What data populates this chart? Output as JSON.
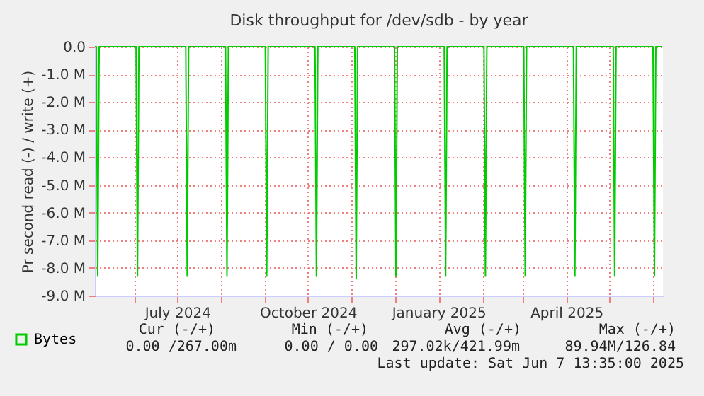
{
  "chart_data": {
    "type": "line",
    "title": "Disk throughput for /dev/sdb - by year",
    "ylabel": "Pr second read (-) / write (+)",
    "series": [
      {
        "name": "Bytes",
        "color": "#00cc00",
        "x": [
          "2024-05-04",
          "2024-05-05",
          "2024-05-06",
          "2024-05-07",
          "2024-06-02",
          "2024-06-03",
          "2024-06-04",
          "2024-07-07",
          "2024-07-08",
          "2024-07-09",
          "2024-08-04",
          "2024-08-05",
          "2024-08-06",
          "2024-09-01",
          "2024-09-02",
          "2024-09-03",
          "2024-10-06",
          "2024-10-07",
          "2024-10-08",
          "2024-11-03",
          "2024-11-04",
          "2024-11-05",
          "2024-12-01",
          "2024-12-02",
          "2024-12-03",
          "2025-01-05",
          "2025-01-06",
          "2025-01-07",
          "2025-02-02",
          "2025-02-03",
          "2025-02-04",
          "2025-03-02",
          "2025-03-03",
          "2025-03-04",
          "2025-04-06",
          "2025-04-07",
          "2025-04-08",
          "2025-05-04",
          "2025-05-05",
          "2025-05-06",
          "2025-06-01",
          "2025-06-02",
          "2025-06-03",
          "2025-06-07"
        ],
        "values": [
          0,
          0,
          -8300000,
          0,
          0,
          -8300000,
          0,
          0,
          -8300000,
          0,
          0,
          -8300000,
          0,
          0,
          -8300000,
          0,
          0,
          -8300000,
          0,
          0,
          -8400000,
          0,
          0,
          -8300000,
          0,
          0,
          -8300000,
          0,
          0,
          -8300000,
          0,
          0,
          -8300000,
          0,
          0,
          -8300000,
          0,
          0,
          -8300000,
          0,
          0,
          -8300000,
          0,
          0
        ]
      }
    ],
    "xlim": [
      "2024-05-04",
      "2025-06-08"
    ],
    "xticks": [
      {
        "value": "2024-06-01",
        "label": null
      },
      {
        "value": "2024-07-01",
        "label": "July 2024"
      },
      {
        "value": "2024-08-01",
        "label": null
      },
      {
        "value": "2024-09-01",
        "label": null
      },
      {
        "value": "2024-10-01",
        "label": "October 2024"
      },
      {
        "value": "2024-11-01",
        "label": null
      },
      {
        "value": "2024-12-01",
        "label": null
      },
      {
        "value": "2025-01-01",
        "label": "January 2025"
      },
      {
        "value": "2025-02-01",
        "label": null
      },
      {
        "value": "2025-03-01",
        "label": null
      },
      {
        "value": "2025-04-01",
        "label": "April 2025"
      },
      {
        "value": "2025-05-01",
        "label": null
      },
      {
        "value": "2025-06-01",
        "label": null
      }
    ],
    "ylim": [
      -9000000,
      0
    ],
    "yticks": [
      {
        "value": 0,
        "label": "0.0"
      },
      {
        "value": -1000000,
        "label": "-1.0 M"
      },
      {
        "value": -2000000,
        "label": "-2.0 M"
      },
      {
        "value": -3000000,
        "label": "-3.0 M"
      },
      {
        "value": -4000000,
        "label": "-4.0 M"
      },
      {
        "value": -5000000,
        "label": "-5.0 M"
      },
      {
        "value": -6000000,
        "label": "-6.0 M"
      },
      {
        "value": -7000000,
        "label": "-7.0 M"
      },
      {
        "value": -8000000,
        "label": "-8.0 M"
      },
      {
        "value": -9000000,
        "label": "-9.0 M"
      }
    ],
    "grid": true,
    "legend": "bottom left",
    "annotations": [
      "Cur (-/+)",
      "Min (-/+)",
      "Avg (-/+)",
      "Max (-/+)",
      "0.00 /267.00m",
      "0.00 /   0.00",
      "297.02k/421.99m",
      "89.94M/126.84",
      "Last update:  Sat Jun  7 13:35:00 2025"
    ]
  }
}
